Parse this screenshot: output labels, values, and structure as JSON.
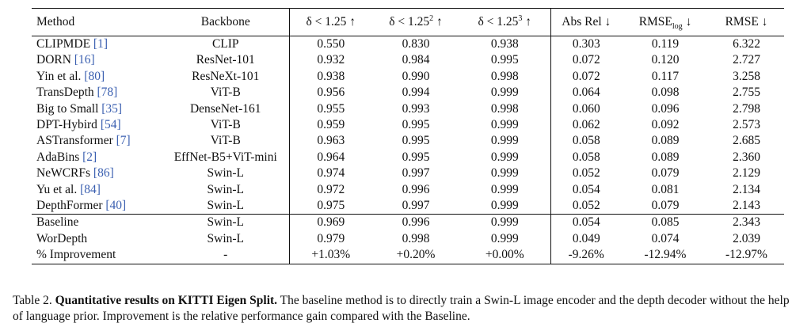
{
  "headers": {
    "method": "Method",
    "backbone": "Backbone",
    "d1": "δ < 1.25 ↑",
    "d2_pre": "δ < 1.25",
    "d2_sup": "2",
    "d2_post": " ↑",
    "d3_pre": "δ < 1.25",
    "d3_sup": "3",
    "d3_post": " ↑",
    "absrel": "Abs Rel ↓",
    "rmselog_pre": "RMSE",
    "rmselog_sub": "log",
    "rmselog_post": " ↓",
    "rmse": "RMSE ↓"
  },
  "rows": [
    {
      "name": "CLIPMDE",
      "cite": "[1]",
      "backbone": "CLIP",
      "d1": "0.550",
      "d2": "0.830",
      "d3": "0.938",
      "absrel": "0.303",
      "rmselog": "0.119",
      "rmse": "6.322"
    },
    {
      "name": "DORN",
      "cite": "[16]",
      "backbone": "ResNet-101",
      "d1": "0.932",
      "d2": "0.984",
      "d3": "0.995",
      "absrel": "0.072",
      "rmselog": "0.120",
      "rmse": "2.727"
    },
    {
      "name": "Yin et al.",
      "cite": "[80]",
      "backbone": "ResNeXt-101",
      "d1": "0.938",
      "d2": "0.990",
      "d3": "0.998",
      "absrel": "0.072",
      "rmselog": "0.117",
      "rmse": "3.258"
    },
    {
      "name": "TransDepth",
      "cite": "[78]",
      "backbone": "ViT-B",
      "d1": "0.956",
      "d2": "0.994",
      "d3": "0.999",
      "absrel": "0.064",
      "rmselog": "0.098",
      "rmse": "2.755"
    },
    {
      "name": "Big to Small",
      "cite": "[35]",
      "backbone": "DenseNet-161",
      "d1": "0.955",
      "d2": "0.993",
      "d3": "0.998",
      "absrel": "0.060",
      "rmselog": "0.096",
      "rmse": "2.798"
    },
    {
      "name": "DPT-Hybird",
      "cite": "[54]",
      "backbone": "ViT-B",
      "d1": "0.959",
      "d2": "0.995",
      "d3": "0.999",
      "absrel": "0.062",
      "rmselog": "0.092",
      "rmse": "2.573"
    },
    {
      "name": "ASTransformer",
      "cite": "[7]",
      "backbone": "ViT-B",
      "d1": "0.963",
      "d2": "0.995",
      "d3": "0.999",
      "absrel": "0.058",
      "rmselog": "0.089",
      "rmse": "2.685"
    },
    {
      "name": "AdaBins",
      "cite": "[2]",
      "backbone": "EffNet-B5+ViT-mini",
      "d1": "0.964",
      "d2": "0.995",
      "d3": "0.999",
      "absrel": "0.058",
      "rmselog": "0.089",
      "rmse": "2.360"
    },
    {
      "name": "NeWCRFs",
      "cite": "[86]",
      "backbone": "Swin-L",
      "d1": "0.974",
      "d2": "0.997",
      "d3": "0.999",
      "absrel": "0.052",
      "rmselog": "0.079",
      "rmse": "2.129"
    },
    {
      "name": "Yu et al.",
      "cite": "[84]",
      "backbone": "Swin-L",
      "d1": "0.972",
      "d2": "0.996",
      "d3": "0.999",
      "absrel": "0.054",
      "rmselog": "0.081",
      "rmse": "2.134"
    },
    {
      "name": "DepthFormer",
      "cite": "[40]",
      "backbone": "Swin-L",
      "d1": "0.975",
      "d2": "0.997",
      "d3": "0.999",
      "absrel": "0.052",
      "rmselog": "0.079",
      "rmse": "2.143"
    }
  ],
  "bottom_rows": [
    {
      "name": "Baseline",
      "backbone": "Swin-L",
      "d1": "0.969",
      "d2": "0.996",
      "d3": "0.999",
      "absrel": "0.054",
      "rmselog": "0.085",
      "rmse": "2.343"
    },
    {
      "name": "WorDepth",
      "backbone": "Swin-L",
      "d1": "0.979",
      "d2": "0.998",
      "d3": "0.999",
      "absrel": "0.049",
      "rmselog": "0.074",
      "rmse": "2.039"
    },
    {
      "name": "% Improvement",
      "backbone": "-",
      "d1": "+1.03%",
      "d2": "+0.20%",
      "d3": "+0.00%",
      "absrel": "-9.26%",
      "rmselog": "-12.94%",
      "rmse": "-12.97%"
    }
  ],
  "caption": {
    "label": "Table 2.",
    "title": "Quantitative results on KITTI Eigen Split.",
    "text": "The baseline method is to directly train a Swin-L image encoder and the depth decoder without the help of language prior. Improvement is the relative performance gain compared with the Baseline."
  }
}
